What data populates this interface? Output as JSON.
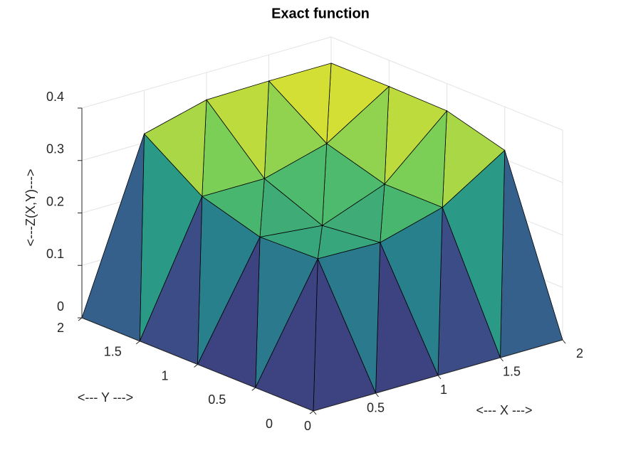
{
  "chart_data": {
    "type": "surface",
    "title": "Exact function",
    "x_label": "<--- X --->",
    "y_label": "<--- Y --->",
    "z_label": "<---Z(X,Y)--->",
    "x": [
      0,
      0.5,
      1,
      1.5,
      2
    ],
    "y": [
      0,
      0.5,
      1,
      1.5,
      2
    ],
    "z": [
      [
        0,
        0,
        0,
        0,
        0
      ],
      [
        0,
        0.212,
        0.209,
        0.242,
        0.317
      ],
      [
        0,
        0.209,
        0.197,
        0.242,
        0.348
      ],
      [
        0,
        0.242,
        0.242,
        0.275,
        0.35
      ],
      [
        0,
        0.317,
        0.348,
        0.35,
        0.35
      ]
    ],
    "xlim": [
      0,
      2
    ],
    "ylim": [
      0,
      2
    ],
    "zlim": [
      0,
      0.4
    ],
    "xticks": [
      0,
      0.5,
      1,
      1.5,
      2
    ],
    "yticks": [
      0,
      0.5,
      1,
      1.5,
      2
    ],
    "zticks": [
      0,
      0.1,
      0.2,
      0.3,
      0.4
    ],
    "grid": true
  }
}
